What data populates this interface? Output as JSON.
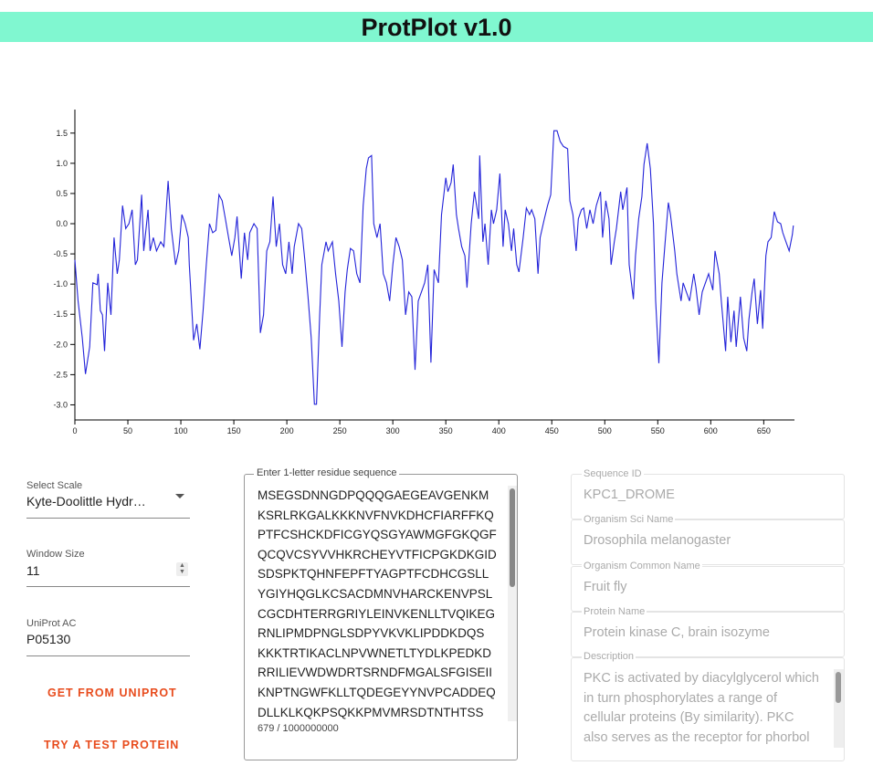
{
  "header": {
    "title": "ProtPlot v1.0"
  },
  "chart_data": {
    "type": "line",
    "color": "#2323d9",
    "x": [
      0,
      3,
      7,
      10,
      14,
      17,
      21,
      22,
      24,
      26,
      28,
      31,
      34,
      37,
      40,
      42,
      45,
      48,
      51,
      54,
      57,
      59,
      63,
      65,
      69,
      71,
      74,
      77,
      81,
      84,
      88,
      91,
      95,
      98,
      101,
      104,
      107,
      108,
      112,
      115,
      118,
      121,
      124,
      127,
      130,
      133,
      136,
      139,
      142,
      145,
      148,
      151,
      153,
      157,
      160,
      163,
      165,
      169,
      172,
      175,
      178,
      181,
      184,
      187,
      190,
      193,
      196,
      199,
      202,
      205,
      207,
      211,
      214,
      217,
      220,
      223,
      226,
      228,
      231,
      233,
      237,
      239,
      243,
      246,
      249,
      252,
      255,
      257,
      260,
      263,
      266,
      269,
      272,
      275,
      277,
      280,
      282,
      285,
      288,
      291,
      294,
      297,
      300,
      303,
      306,
      309,
      312,
      315,
      318,
      321,
      324,
      327,
      330,
      333,
      336,
      339,
      343,
      346,
      350,
      352,
      355,
      357,
      360,
      362,
      365,
      368,
      370,
      374,
      377,
      381,
      382,
      385,
      387,
      390,
      393,
      395,
      398,
      401,
      404,
      406,
      409,
      412,
      414,
      417,
      419,
      423,
      426,
      429,
      431,
      434,
      437,
      439,
      443,
      446,
      449,
      452,
      455,
      458,
      461,
      465,
      467,
      470,
      473,
      475,
      478,
      480,
      483,
      486,
      489,
      492,
      496,
      498,
      501,
      504,
      506,
      509,
      511,
      515,
      517,
      521,
      523,
      527,
      529,
      532,
      535,
      537,
      540,
      543,
      546,
      548,
      551,
      554,
      557,
      560,
      562,
      566,
      568,
      572,
      574,
      577,
      580,
      584,
      586,
      589,
      592,
      595,
      598,
      602,
      604,
      608,
      610,
      614,
      616,
      619,
      622,
      624,
      628,
      631,
      634,
      636,
      639,
      641,
      644,
      647,
      649,
      652,
      654,
      657,
      660,
      663,
      666,
      668,
      671,
      674,
      677,
      678
    ],
    "values": [
      -0.6,
      -1.28,
      -1.89,
      -2.49,
      -2.04,
      -0.98,
      -1.01,
      -0.83,
      -1.44,
      -1.51,
      -2.11,
      -0.98,
      -1.51,
      -0.23,
      -0.83,
      -0.6,
      0.3,
      -0.08,
      0,
      0.23,
      -0.68,
      -0.6,
      0.48,
      -0.45,
      0.23,
      -0.45,
      -0.23,
      -0.45,
      -0.3,
      -0.38,
      0.71,
      -0.08,
      -0.68,
      -0.45,
      0.15,
      0,
      -0.23,
      -0.68,
      -1.93,
      -1.66,
      -2.08,
      -1.44,
      -0.68,
      0,
      -0.15,
      -0.11,
      0.48,
      0.38,
      0.08,
      -0.23,
      -0.53,
      -0.23,
      0.12,
      -0.91,
      -0.15,
      -0.6,
      -0.15,
      0,
      -0.08,
      -1.81,
      -1.51,
      -0.45,
      -0.3,
      0.45,
      -0.38,
      0,
      -0.68,
      -0.83,
      -0.3,
      -0.83,
      -0.38,
      0,
      -0.08,
      -0.6,
      -1.21,
      -1.89,
      -2.99,
      -2.99,
      -1.51,
      -0.68,
      -0.3,
      -0.45,
      -0.3,
      -0.83,
      -1.28,
      -2.04,
      -1.13,
      -0.76,
      -0.41,
      -0.45,
      -0.83,
      -0.98,
      0.3,
      0.91,
      1.09,
      1.13,
      0,
      -0.23,
      0,
      -0.83,
      -0.98,
      -1.28,
      -0.68,
      -0.23,
      -0.38,
      -0.6,
      -1.51,
      -1.13,
      -1.21,
      -2.42,
      -1.28,
      -1.13,
      -0.98,
      -0.68,
      -2.3,
      -0.76,
      -0.98,
      0.15,
      0.76,
      0.53,
      0.68,
      0.98,
      0.15,
      -0.08,
      -0.38,
      -0.53,
      -1.06,
      0,
      0.53,
      0.08,
      1.13,
      -0.3,
      0,
      -0.68,
      0.23,
      0,
      0.23,
      0.83,
      -0.38,
      0.23,
      0,
      -0.45,
      -0.08,
      -0.68,
      -0.8,
      -0.23,
      0.26,
      0.15,
      0.23,
      0.08,
      -0.83,
      -0.23,
      0.08,
      0.3,
      0.48,
      1.54,
      1.54,
      1.36,
      1.28,
      1.24,
      0.38,
      0.15,
      -0.45,
      0.08,
      0.23,
      0.26,
      -0.08,
      0.23,
      0,
      0.3,
      0.53,
      -0.23,
      0.38,
      0.08,
      -0.68,
      -0.3,
      -0.08,
      0.53,
      0.23,
      0.6,
      -0.68,
      -1.25,
      -0.53,
      0.08,
      0.45,
      0.98,
      1.33,
      0.91,
      0,
      -1.28,
      -2.31,
      -0.98,
      -0.3,
      0.35,
      0.15,
      -0.45,
      -0.83,
      -1.28,
      -0.98,
      -1.13,
      -1.28,
      -0.83,
      -1.06,
      -1.51,
      -1.13,
      -0.98,
      -0.83,
      -1.1,
      -0.45,
      -0.83,
      -1.28,
      -2.11,
      -1.21,
      -1.96,
      -1.44,
      -2.04,
      -1.21,
      -1.89,
      -2.11,
      -1.59,
      -1.13,
      -0.91,
      -1.66,
      -1.1,
      -1.74,
      -0.53,
      -0.3,
      -0.23,
      0.2,
      0.03,
      0,
      -0.15,
      -0.3,
      -0.45,
      -0.18,
      -0.03
    ],
    "xlim": [
      0,
      679
    ],
    "ylim": [
      -3.25,
      1.89
    ],
    "xticks": [
      0,
      50,
      100,
      150,
      200,
      250,
      300,
      350,
      400,
      450,
      500,
      550,
      600,
      650
    ],
    "yticks": [
      1.5,
      {
        "value": 1,
        "label": "1.0"
      },
      0.5,
      {
        "value": 0,
        "label": "0.0"
      },
      -0.5,
      {
        "value": -1,
        "label": "-1.0"
      },
      -1.5,
      {
        "value": -2,
        "label": "-2.0"
      },
      -2.5,
      {
        "value": -3,
        "label": "-3.0"
      }
    ]
  },
  "form": {
    "scale_label": "Select Scale",
    "scale_value": "Kyte-Doolittle Hydr…",
    "window_label": "Window Size",
    "window_value": "11",
    "uniprot_label": "UniProt AC",
    "uniprot_value": "P05130",
    "button_get": "GET FROM UNIPROT",
    "button_test": "TRY A TEST PROTEIN"
  },
  "sequence": {
    "label": "Enter 1-letter residue sequence",
    "lines": [
      "MSEGSDNNGDPQQQGAEGEAVGENKM",
      "KSRLRKGALKKKNVFNVKDHCFIARFFKQ",
      "PTFCSHCKDFICGYQSGYAWMGFGKQGF",
      "QCQVCSYVVHKRCHEYVTFICPGKDKGID",
      "SDSPKTQHNFEPFTYAGPTFCDHCGSLL",
      "YGIYHQGLKCSACDMNVHARCKENVPSL",
      "CGCDHTERRGRIYLEINVKENLLTVQIKEG",
      "RNLIPMDPNGLSDPYVKVKLIPDDKDQS",
      "KKKTRTIKACLNPVWNETLTYDLKPEDKD",
      "RRILIEVWDWDRTSRNDFMGALSFGISEII",
      "KNPTNGWFKLLTQDEGEYYNVPCADDEQ",
      "DLLKLKQKPSQKKPMVMRSDTNTHTSS"
    ],
    "counter": "679 / 1000000000"
  },
  "info": [
    {
      "label": "Sequence ID",
      "value": "KPC1_DROME"
    },
    {
      "label": "Organism Sci Name",
      "value": "Drosophila melanogaster"
    },
    {
      "label": "Organism Common Name",
      "value": "Fruit fly"
    },
    {
      "label": "Protein Name",
      "value": "Protein kinase C, brain isozyme"
    }
  ],
  "description": {
    "label": "Description",
    "lines": [
      "PKC is activated by diacylglycerol which",
      "in turn phosphorylates a range of",
      "cellular proteins (By similarity). PKC",
      "also serves as the receptor for phorbol"
    ]
  }
}
